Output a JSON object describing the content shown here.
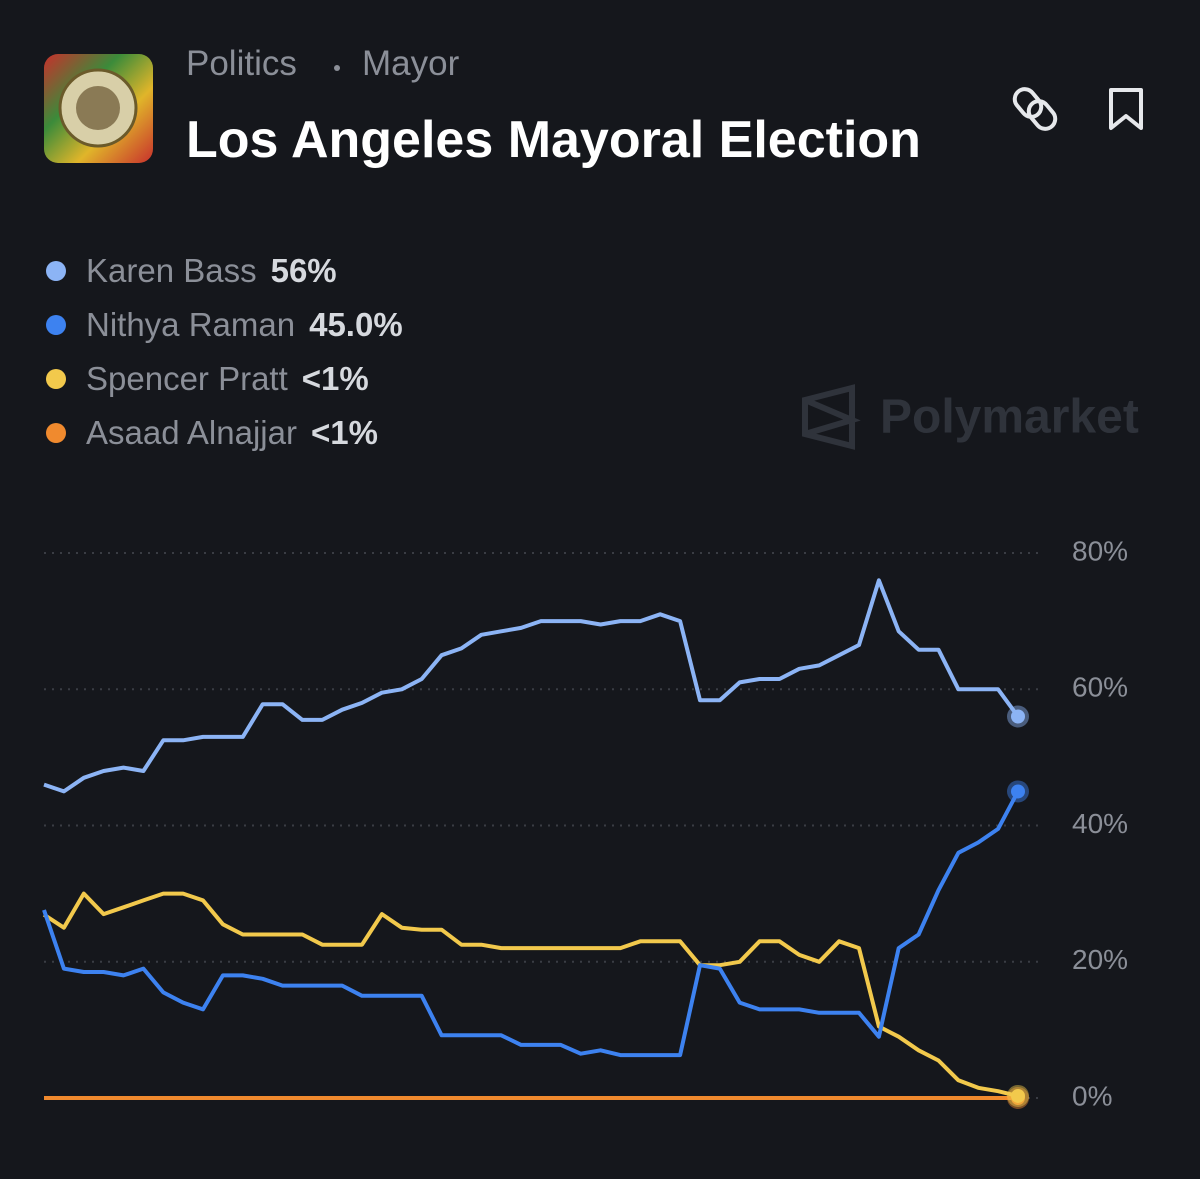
{
  "header": {
    "category": "Politics",
    "subcategory": "Mayor",
    "title": "Los Angeles Mayoral Election"
  },
  "watermark": "Polymarket",
  "chart_data": {
    "type": "line",
    "series": [
      {
        "name": "Karen Bass",
        "color": "#8cb4f5",
        "value_label": "56%",
        "values": [
          46,
          45,
          47,
          48,
          48.5,
          48,
          52.5,
          52.5,
          53,
          53,
          53,
          57.8,
          57.8,
          55.5,
          55.5,
          57,
          58,
          59.5,
          60,
          61.5,
          65,
          66,
          68,
          68.5,
          69,
          70,
          70,
          70,
          69.5,
          70,
          70,
          71,
          70,
          58.4,
          58.4,
          61,
          61.5,
          61.5,
          63,
          63.5,
          65,
          66.5,
          76,
          68.5,
          65.8,
          65.8,
          60,
          60,
          60,
          56
        ]
      },
      {
        "name": "Nithya Raman",
        "color": "#3d82f0",
        "value_label": "45.0%",
        "values": [
          27.6,
          19,
          18.5,
          18.5,
          18,
          19,
          15.5,
          14,
          13,
          18,
          18,
          17.5,
          16.5,
          16.5,
          16.5,
          16.5,
          15,
          15,
          15,
          15,
          9.2,
          9.2,
          9.2,
          9.2,
          7.8,
          7.8,
          7.8,
          6.5,
          7,
          6.3,
          6.3,
          6.3,
          6.3,
          19.5,
          19,
          14,
          13,
          13,
          13,
          12.5,
          12.5,
          12.5,
          9,
          22,
          24,
          30.5,
          36,
          37.5,
          39.5,
          45
        ]
      },
      {
        "name": "Spencer Pratt",
        "color": "#f2c94c",
        "value_label": "<1%",
        "values": [
          26.9,
          25,
          30,
          27,
          28,
          29,
          30,
          30,
          29,
          25.5,
          24,
          24,
          24,
          24,
          22.5,
          22.5,
          22.5,
          27,
          25,
          24.7,
          24.7,
          22.5,
          22.5,
          22,
          22,
          22,
          22,
          22,
          22,
          22,
          23,
          23,
          23,
          19.5,
          19.5,
          20,
          23,
          23,
          21,
          20,
          23,
          22,
          10.5,
          9,
          7,
          5.5,
          2.6,
          1.5,
          1,
          0.3
        ]
      },
      {
        "name": "Asaad Alnajjar",
        "color": "#f08a2e",
        "value_label": "<1%",
        "values": [
          0,
          0,
          0,
          0,
          0,
          0,
          0,
          0,
          0,
          0,
          0,
          0,
          0,
          0,
          0,
          0,
          0,
          0,
          0,
          0,
          0,
          0,
          0,
          0,
          0,
          0,
          0,
          0,
          0,
          0,
          0,
          0,
          0,
          0,
          0,
          0,
          0,
          0,
          0,
          0,
          0,
          0,
          0,
          0,
          0,
          0,
          0,
          0,
          0,
          0
        ]
      }
    ],
    "ylim": [
      0,
      80
    ],
    "yticks": [
      {
        "value": 0,
        "label": "0%"
      },
      {
        "value": 20,
        "label": "20%"
      },
      {
        "value": 40,
        "label": "40%"
      },
      {
        "value": 60,
        "label": "60%"
      },
      {
        "value": 80,
        "label": "80%"
      }
    ],
    "grid": true
  }
}
